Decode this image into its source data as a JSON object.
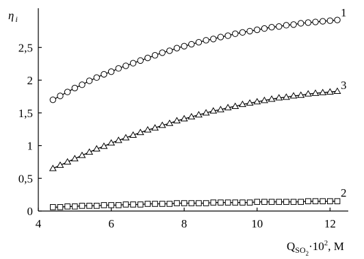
{
  "chart_data": {
    "type": "line",
    "ylabel_main": "η",
    "ylabel_sub": "i",
    "xlabel_main": "Q",
    "xlabel_sub": "SO",
    "xlabel_subsub": "2",
    "xlabel_mult": "·10",
    "xlabel_exp": "2",
    "xlabel_unit": ", M",
    "xlim": [
      4,
      12.5
    ],
    "ylim": [
      0,
      3.1
    ],
    "x_ticks": [
      4,
      6,
      8,
      10,
      12
    ],
    "x_tick_labels": [
      "4",
      "6",
      "8",
      "10",
      "12"
    ],
    "y_ticks": [
      0,
      0.5,
      1,
      1.5,
      2,
      2.5
    ],
    "y_tick_labels": [
      "0",
      "0,5",
      "1",
      "1,5",
      "2",
      "2,5"
    ],
    "grid": false,
    "series": [
      {
        "name": "1",
        "marker": "circle",
        "x": [
          4.4,
          4.6,
          4.8,
          5.0,
          5.2,
          5.4,
          5.6,
          5.8,
          6.0,
          6.2,
          6.4,
          6.6,
          6.8,
          7.0,
          7.2,
          7.4,
          7.6,
          7.8,
          8.0,
          8.2,
          8.4,
          8.6,
          8.8,
          9.0,
          9.2,
          9.4,
          9.6,
          9.8,
          10.0,
          10.2,
          10.4,
          10.6,
          10.8,
          11.0,
          11.2,
          11.4,
          11.6,
          11.8,
          12.0,
          12.2
        ],
        "y": [
          1.7,
          1.76,
          1.82,
          1.88,
          1.93,
          1.99,
          2.04,
          2.09,
          2.13,
          2.18,
          2.22,
          2.26,
          2.3,
          2.34,
          2.38,
          2.42,
          2.45,
          2.49,
          2.52,
          2.55,
          2.58,
          2.61,
          2.63,
          2.66,
          2.68,
          2.71,
          2.73,
          2.75,
          2.77,
          2.79,
          2.81,
          2.82,
          2.84,
          2.85,
          2.87,
          2.88,
          2.89,
          2.9,
          2.91,
          2.92
        ]
      },
      {
        "name": "3",
        "marker": "triangle",
        "x": [
          4.4,
          4.6,
          4.8,
          5.0,
          5.2,
          5.4,
          5.6,
          5.8,
          6.0,
          6.2,
          6.4,
          6.6,
          6.8,
          7.0,
          7.2,
          7.4,
          7.6,
          7.8,
          8.0,
          8.2,
          8.4,
          8.6,
          8.8,
          9.0,
          9.2,
          9.4,
          9.6,
          9.8,
          10.0,
          10.2,
          10.4,
          10.6,
          10.8,
          11.0,
          11.2,
          11.4,
          11.6,
          11.8,
          12.0,
          12.2
        ],
        "y": [
          0.65,
          0.7,
          0.75,
          0.8,
          0.85,
          0.9,
          0.95,
          0.99,
          1.04,
          1.08,
          1.12,
          1.16,
          1.2,
          1.24,
          1.27,
          1.31,
          1.34,
          1.38,
          1.41,
          1.44,
          1.47,
          1.5,
          1.53,
          1.55,
          1.58,
          1.6,
          1.63,
          1.65,
          1.67,
          1.69,
          1.71,
          1.73,
          1.74,
          1.76,
          1.77,
          1.79,
          1.8,
          1.81,
          1.82,
          1.83
        ]
      },
      {
        "name": "2",
        "marker": "square",
        "x": [
          4.4,
          4.6,
          4.8,
          5.0,
          5.2,
          5.4,
          5.6,
          5.8,
          6.0,
          6.2,
          6.4,
          6.6,
          6.8,
          7.0,
          7.2,
          7.4,
          7.6,
          7.8,
          8.0,
          8.2,
          8.4,
          8.6,
          8.8,
          9.0,
          9.2,
          9.4,
          9.6,
          9.8,
          10.0,
          10.2,
          10.4,
          10.6,
          10.8,
          11.0,
          11.2,
          11.4,
          11.6,
          11.8,
          12.0,
          12.2
        ],
        "y": [
          0.06,
          0.06,
          0.07,
          0.07,
          0.08,
          0.08,
          0.08,
          0.09,
          0.09,
          0.09,
          0.1,
          0.1,
          0.1,
          0.11,
          0.11,
          0.11,
          0.11,
          0.12,
          0.12,
          0.12,
          0.12,
          0.12,
          0.13,
          0.13,
          0.13,
          0.13,
          0.13,
          0.13,
          0.14,
          0.14,
          0.14,
          0.14,
          0.14,
          0.14,
          0.14,
          0.15,
          0.15,
          0.15,
          0.15,
          0.15
        ]
      }
    ]
  }
}
